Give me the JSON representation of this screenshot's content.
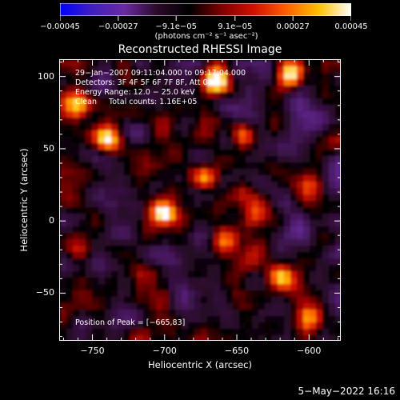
{
  "chart_data": {
    "type": "heatmap",
    "title": "Reconstructed RHESSI Image",
    "xlabel": "Heliocentric X (arcsec)",
    "ylabel": "Heliocentric Y (arcsec)",
    "xlim": [
      -773,
      -578
    ],
    "ylim": [
      -83,
      112
    ],
    "x_ticks": [
      -750,
      -700,
      -650,
      -600
    ],
    "x_tick_labels": [
      "−750",
      "−700",
      "−650",
      "−600"
    ],
    "y_ticks": [
      -50,
      0,
      50,
      100
    ],
    "y_tick_labels": [
      "−50",
      "0",
      "50",
      "100"
    ],
    "colorbar": {
      "range": [
        -0.00045,
        0.00045
      ],
      "ticks": [
        -0.00045,
        -0.00027,
        -9.1e-05,
        9.1e-05,
        0.00027,
        0.00045
      ],
      "tick_labels": [
        "−0.00045",
        "−0.00027",
        "−9.1e−05",
        "9.1e−05",
        "0.00027",
        "0.00045"
      ],
      "units": "(photons cm⁻² s⁻¹ asec⁻²)",
      "colors": [
        "#0000ff",
        "#4020c0",
        "#6a2aa0",
        "#2a0a2a",
        "#000000",
        "#800000",
        "#d01000",
        "#ff6000",
        "#ffc000",
        "#ffffff"
      ]
    },
    "annotations": {
      "time_range": "29−Jan−2007 09:11:04.000 to 09:17:04.000",
      "detectors": "Detectors: 3F 4F 5F 6F 7F 8F, Att 0",
      "energy_range": "Energy Range: 12.0 − 25.0 keV",
      "method": "Clean     Total counts: 1.16E+05",
      "peak": "Position of Peak = [−665,83]"
    },
    "peak": {
      "x": -665,
      "y": 83
    },
    "bright_sources": [
      {
        "x": -700,
        "y": 5,
        "strength": 1.0
      },
      {
        "x": -665,
        "y": 97,
        "strength": 0.95
      },
      {
        "x": -612,
        "y": 101,
        "strength": 0.7
      },
      {
        "x": -740,
        "y": 57,
        "strength": 0.7
      },
      {
        "x": -620,
        "y": -38,
        "strength": 0.75
      },
      {
        "x": -600,
        "y": -67,
        "strength": 0.7
      },
      {
        "x": -660,
        "y": -12,
        "strength": 0.6
      },
      {
        "x": -760,
        "y": 80,
        "strength": 0.55
      },
      {
        "x": -672,
        "y": 30,
        "strength": 0.55
      },
      {
        "x": -645,
        "y": 60,
        "strength": 0.5
      },
      {
        "x": -638,
        "y": 5,
        "strength": 0.55
      },
      {
        "x": -700,
        "y": -52,
        "strength": 0.45
      },
      {
        "x": -760,
        "y": -20,
        "strength": 0.4
      },
      {
        "x": -600,
        "y": 25,
        "strength": 0.45
      }
    ]
  },
  "footer": {
    "timestamp": "5−May−2022 16:16"
  }
}
